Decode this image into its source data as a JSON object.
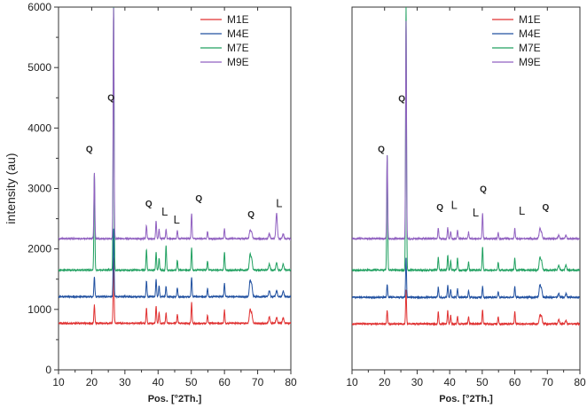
{
  "chart_data": [
    {
      "type": "line",
      "xlabel": "Pos. [°2Th.]",
      "ylabel": "intensity (au)",
      "xlim": [
        10,
        80
      ],
      "ylim": [
        0,
        6000
      ],
      "xticks": [
        10,
        20,
        30,
        40,
        50,
        60,
        70,
        80
      ],
      "yticks": [
        0,
        1000,
        2000,
        3000,
        4000,
        5000,
        6000
      ],
      "legend_position": "top-right",
      "series": [
        {
          "name": "M1E",
          "color": "#e03030",
          "baseline": 770,
          "peaks": [
            [
              20.8,
              300
            ],
            [
              26.6,
              1080
            ],
            [
              36.5,
              250
            ],
            [
              39.4,
              280
            ],
            [
              40.3,
              180
            ],
            [
              42.4,
              170
            ],
            [
              45.8,
              150
            ],
            [
              50.1,
              340
            ],
            [
              54.9,
              140
            ],
            [
              60.0,
              220
            ],
            [
              67.7,
              220
            ],
            [
              68.2,
              160
            ],
            [
              73.5,
              100
            ],
            [
              75.7,
              100
            ],
            [
              77.7,
              90
            ]
          ]
        },
        {
          "name": "M4E",
          "color": "#2050a0",
          "baseline": 1210,
          "peaks": [
            [
              20.8,
              330
            ],
            [
              26.6,
              1120
            ],
            [
              36.5,
              260
            ],
            [
              39.4,
              290
            ],
            [
              40.3,
              180
            ],
            [
              42.4,
              170
            ],
            [
              45.8,
              150
            ],
            [
              50.1,
              330
            ],
            [
              54.9,
              140
            ],
            [
              60.0,
              220
            ],
            [
              67.7,
              260
            ],
            [
              68.2,
              200
            ],
            [
              73.5,
              100
            ],
            [
              75.7,
              100
            ],
            [
              77.7,
              90
            ]
          ]
        },
        {
          "name": "M7E",
          "color": "#20a060",
          "baseline": 1650,
          "peaks": [
            [
              20.8,
              1600
            ],
            [
              26.6,
              4400
            ],
            [
              36.5,
              340
            ],
            [
              39.4,
              300
            ],
            [
              40.3,
              200
            ],
            [
              42.4,
              410
            ],
            [
              45.8,
              160
            ],
            [
              50.1,
              370
            ],
            [
              54.9,
              150
            ],
            [
              60.0,
              300
            ],
            [
              67.7,
              250
            ],
            [
              68.2,
              180
            ],
            [
              73.5,
              100
            ],
            [
              75.7,
              120
            ],
            [
              77.7,
              100
            ]
          ]
        },
        {
          "name": "M9E",
          "color": "#9060c0",
          "baseline": 2170,
          "peaks": [
            [
              20.8,
              1080
            ],
            [
              26.6,
              3830
            ],
            [
              36.5,
              220
            ],
            [
              39.4,
              300
            ],
            [
              40.3,
              160
            ],
            [
              42.4,
              150
            ],
            [
              45.8,
              140
            ],
            [
              50.1,
              420
            ],
            [
              54.9,
              120
            ],
            [
              60.0,
              160
            ],
            [
              67.7,
              130
            ],
            [
              68.2,
              100
            ],
            [
              73.5,
              80
            ],
            [
              75.7,
              420
            ],
            [
              77.7,
              80
            ]
          ]
        }
      ],
      "annotations": [
        {
          "text": "Q",
          "x": 19.3,
          "y": 3600
        },
        {
          "text": "Q",
          "x": 25.8,
          "y": 4450
        },
        {
          "text": "Q",
          "x": 37.2,
          "y": 2700
        },
        {
          "text": "L",
          "x": 42.0,
          "y": 2550
        },
        {
          "text": "L",
          "x": 45.6,
          "y": 2420
        },
        {
          "text": "Q",
          "x": 52.3,
          "y": 2790
        },
        {
          "text": "Q",
          "x": 68.0,
          "y": 2520
        },
        {
          "text": "L",
          "x": 76.5,
          "y": 2690
        }
      ]
    },
    {
      "type": "line",
      "xlabel": "Pos. [°2Th.]",
      "ylabel": "",
      "xlim": [
        10,
        80
      ],
      "ylim": [
        0,
        6000
      ],
      "xticks": [
        10,
        20,
        30,
        40,
        50,
        60,
        70,
        80
      ],
      "legend_position": "top-right",
      "series": [
        {
          "name": "M1E",
          "color": "#e03030",
          "baseline": 760,
          "peaks": [
            [
              20.8,
              220
            ],
            [
              26.6,
              560
            ],
            [
              36.5,
              200
            ],
            [
              39.4,
              220
            ],
            [
              40.3,
              140
            ],
            [
              42.4,
              130
            ],
            [
              45.8,
              120
            ],
            [
              50.1,
              230
            ],
            [
              54.9,
              120
            ],
            [
              60.0,
              200
            ],
            [
              67.7,
              140
            ],
            [
              68.2,
              120
            ],
            [
              73.5,
              70
            ],
            [
              75.7,
              60
            ]
          ]
        },
        {
          "name": "M4E",
          "color": "#2050a0",
          "baseline": 1200,
          "peaks": [
            [
              20.8,
              220
            ],
            [
              26.6,
              650
            ],
            [
              36.5,
              170
            ],
            [
              39.4,
              200
            ],
            [
              40.3,
              130
            ],
            [
              42.4,
              140
            ],
            [
              45.8,
              110
            ],
            [
              50.1,
              180
            ],
            [
              54.9,
              100
            ],
            [
              60.0,
              180
            ],
            [
              67.7,
              200
            ],
            [
              68.2,
              140
            ],
            [
              73.5,
              60
            ],
            [
              75.7,
              60
            ]
          ]
        },
        {
          "name": "M7E",
          "color": "#20a060",
          "baseline": 1650,
          "peaks": [
            [
              20.8,
              1900
            ],
            [
              26.6,
              4350
            ],
            [
              36.5,
              210
            ],
            [
              39.4,
              250
            ],
            [
              40.3,
              150
            ],
            [
              42.4,
              200
            ],
            [
              45.8,
              140
            ],
            [
              50.1,
              390
            ],
            [
              54.9,
              130
            ],
            [
              60.0,
              200
            ],
            [
              67.7,
              200
            ],
            [
              68.2,
              150
            ],
            [
              73.5,
              80
            ],
            [
              75.7,
              80
            ]
          ]
        },
        {
          "name": "M9E",
          "color": "#9060c0",
          "baseline": 2170,
          "peaks": [
            [
              20.8,
              1380
            ],
            [
              26.6,
              3600
            ],
            [
              36.5,
              180
            ],
            [
              39.4,
              180
            ],
            [
              40.3,
              120
            ],
            [
              42.4,
              140
            ],
            [
              45.8,
              110
            ],
            [
              50.1,
              420
            ],
            [
              54.9,
              100
            ],
            [
              60.0,
              170
            ],
            [
              67.7,
              160
            ],
            [
              68.2,
              100
            ],
            [
              73.5,
              60
            ],
            [
              75.7,
              50
            ]
          ]
        }
      ],
      "annotations": [
        {
          "text": "Q",
          "x": 19.0,
          "y": 3600
        },
        {
          "text": "Q",
          "x": 25.3,
          "y": 4440
        },
        {
          "text": "Q",
          "x": 37.0,
          "y": 2640
        },
        {
          "text": "L",
          "x": 41.4,
          "y": 2660
        },
        {
          "text": "L",
          "x": 48.0,
          "y": 2540
        },
        {
          "text": "Q",
          "x": 50.3,
          "y": 2940
        },
        {
          "text": "L",
          "x": 62.2,
          "y": 2570
        },
        {
          "text": "Q",
          "x": 69.5,
          "y": 2640
        }
      ]
    }
  ]
}
